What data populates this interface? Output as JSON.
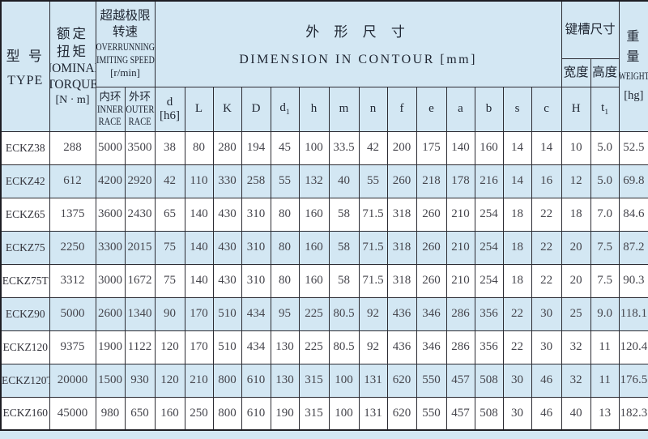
{
  "table": {
    "header": {
      "type": {
        "zh": "型 号",
        "en": "TYPE"
      },
      "torque": {
        "zh": "额定扭矩",
        "en1": "NOMINAL",
        "en2": "TORQUE",
        "unit": "[N · m]"
      },
      "speeds": {
        "zh": "超越极限转速",
        "en1": "OVERRUNNING",
        "en2": "LIMITING SPEEDS",
        "unit": "[r/min]"
      },
      "inner_race": {
        "zh": "内环",
        "en1": "INNER",
        "en2": "RACE"
      },
      "outer_race": {
        "zh": "外环",
        "en1": "OUTER",
        "en2": "RACE"
      },
      "dimension": {
        "zh": "外 形 尺 寸",
        "en": "DIMENSION IN CONTOUR [mm]"
      },
      "keyway": {
        "title": "键槽尺寸",
        "width": "宽度",
        "height": "高度",
        "H": "H",
        "t1": {
          "base": "t",
          "sub": "1"
        }
      },
      "weight": {
        "zh": "重量",
        "en": "WEIGHT",
        "unit": "[hg]"
      },
      "dims": {
        "d_h6": [
          "d",
          "[h6]"
        ],
        "L": "L",
        "K": "K",
        "D": "D",
        "d1": {
          "base": "d",
          "sub": "1"
        },
        "h": "h",
        "m": "m",
        "n": "n",
        "f": "f",
        "e": "e",
        "a": "a",
        "b": "b",
        "s": "s",
        "c": "c"
      }
    },
    "rows": [
      {
        "type": "ECKZ38",
        "values": [
          "288",
          "5000",
          "3500",
          "38",
          "80",
          "280",
          "194",
          "45",
          "100",
          "33.5",
          "42",
          "200",
          "175",
          "140",
          "160",
          "14",
          "14",
          "10",
          "5.0",
          "52.5"
        ]
      },
      {
        "type": "ECKZ42",
        "values": [
          "612",
          "4200",
          "2920",
          "42",
          "110",
          "330",
          "258",
          "55",
          "132",
          "40",
          "55",
          "260",
          "218",
          "178",
          "216",
          "14",
          "16",
          "12",
          "5.0",
          "69.8"
        ]
      },
      {
        "type": "ECKZ65",
        "values": [
          "1375",
          "3600",
          "2430",
          "65",
          "140",
          "430",
          "310",
          "80",
          "160",
          "58",
          "71.5",
          "318",
          "260",
          "210",
          "254",
          "18",
          "22",
          "18",
          "7.0",
          "84.6"
        ]
      },
      {
        "type": "ECKZ75",
        "values": [
          "2250",
          "3300",
          "2015",
          "75",
          "140",
          "430",
          "310",
          "80",
          "160",
          "58",
          "71.5",
          "318",
          "260",
          "210",
          "254",
          "18",
          "22",
          "20",
          "7.5",
          "87.2"
        ]
      },
      {
        "type": "ECKZ75T",
        "values": [
          "3312",
          "3000",
          "1672",
          "75",
          "140",
          "430",
          "310",
          "80",
          "160",
          "58",
          "71.5",
          "318",
          "260",
          "210",
          "254",
          "18",
          "22",
          "20",
          "7.5",
          "90.3"
        ]
      },
      {
        "type": "ECKZ90",
        "values": [
          "5000",
          "2600",
          "1340",
          "90",
          "170",
          "510",
          "434",
          "95",
          "225",
          "80.5",
          "92",
          "436",
          "346",
          "286",
          "356",
          "22",
          "30",
          "25",
          "9.0",
          "118.1"
        ]
      },
      {
        "type": "ECKZ120",
        "values": [
          "9375",
          "1900",
          "1122",
          "120",
          "170",
          "510",
          "434",
          "130",
          "225",
          "80.5",
          "92",
          "436",
          "346",
          "286",
          "356",
          "22",
          "30",
          "32",
          "11",
          "120.4"
        ]
      },
      {
        "type": "ECKZ120T",
        "values": [
          "20000",
          "1500",
          "930",
          "120",
          "210",
          "800",
          "610",
          "130",
          "315",
          "100",
          "131",
          "620",
          "550",
          "457",
          "508",
          "30",
          "46",
          "32",
          "11",
          "176.5"
        ]
      },
      {
        "type": "ECKZ160",
        "values": [
          "45000",
          "980",
          "650",
          "160",
          "250",
          "800",
          "610",
          "190",
          "315",
          "100",
          "131",
          "620",
          "550",
          "457",
          "508",
          "30",
          "46",
          "40",
          "13",
          "182.3"
        ]
      }
    ]
  }
}
